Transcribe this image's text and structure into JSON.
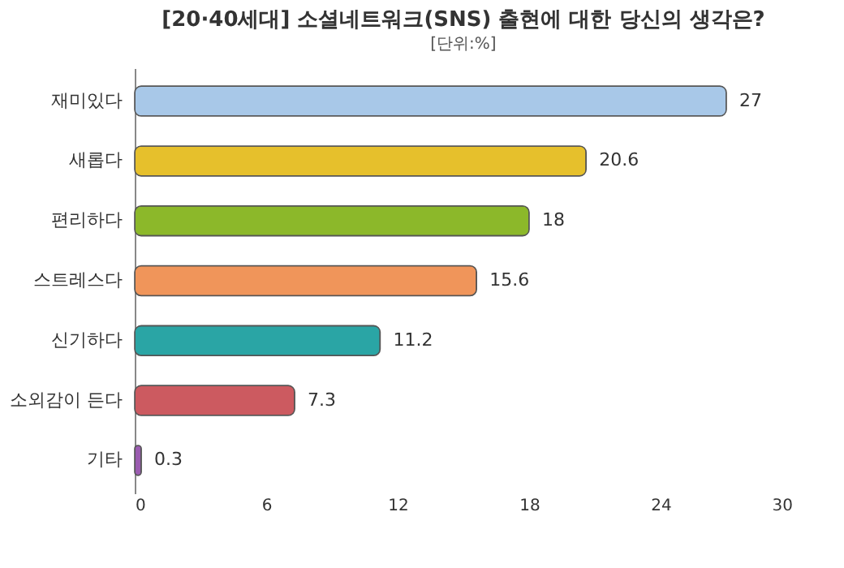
{
  "chart_data": {
    "type": "bar",
    "orientation": "horizontal",
    "title": "[20·40세대] 소셜네트워크(SNS) 출현에 대한 당신의 생각은?",
    "subtitle": "[단위:%]",
    "categories": [
      "재미있다",
      "새롭다",
      "편리하다",
      "스트레스다",
      "신기하다",
      "소외감이 든다",
      "기타"
    ],
    "values": [
      27,
      20.6,
      18,
      15.6,
      11.2,
      7.3,
      0.3
    ],
    "colors": [
      "#a8c8e8",
      "#e6c02c",
      "#8cb82a",
      "#f0955a",
      "#2aa5a5",
      "#cc5a60",
      "#9a5cb0"
    ],
    "xlim": [
      0,
      30
    ],
    "xticks": [
      0,
      6,
      12,
      18,
      24,
      30
    ],
    "data_labels": true
  }
}
